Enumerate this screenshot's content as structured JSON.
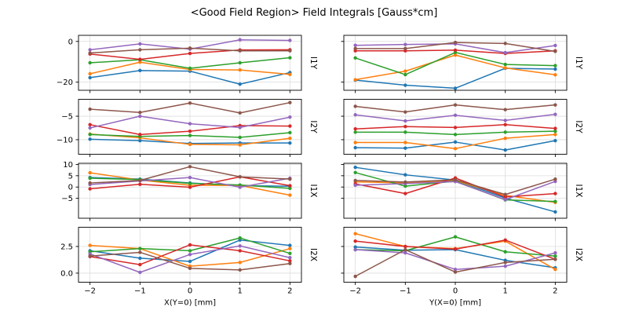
{
  "chart_data": {
    "type": "line",
    "title": "<Good Field Region> Field Integrals [Gauss*cm]",
    "grid": true,
    "legend": "none",
    "x": [
      -2,
      -1,
      0,
      1,
      2
    ],
    "xtick_labels": [
      "−2",
      "−1",
      "0",
      "1",
      "2"
    ],
    "xlim": [
      -2.23,
      2.23
    ],
    "columns": [
      {
        "xlabel": "X(Y=0) [mm]"
      },
      {
        "xlabel": "Y(X=0) [mm]"
      }
    ],
    "rows": [
      {
        "label": "I1Y",
        "ylim": [
          -24.0,
          3.0
        ],
        "yticks": [
          0,
          -20
        ],
        "ytick_labels": [
          "0",
          "−20"
        ]
      },
      {
        "label": "I2Y",
        "ylim": [
          -13.1,
          -1.4
        ],
        "yticks": [
          -5,
          -10
        ],
        "ytick_labels": [
          "−5",
          "−10"
        ]
      },
      {
        "label": "I1X",
        "ylim": [
          -13.8,
          10.5
        ],
        "yticks": [
          10,
          5,
          0,
          -5
        ],
        "ytick_labels": [
          "10",
          "5",
          "0",
          "−5"
        ]
      },
      {
        "label": "I2X",
        "ylim": [
          -0.85,
          4.3
        ],
        "yticks": [
          2.5,
          0
        ],
        "ytick_labels": [
          "2.5",
          "0.0"
        ]
      }
    ],
    "subplots": [
      {
        "row": 0,
        "col": 0,
        "series": [
          {
            "name": "blue",
            "color": "#1f77b4",
            "values": [
              -17.8,
              -14.3,
              -14.6,
              -21.0,
              -15.3
            ]
          },
          {
            "name": "orange",
            "color": "#ff7f0e",
            "values": [
              -15.9,
              -10.2,
              -13.8,
              -14.0,
              -16.2
            ]
          },
          {
            "name": "green",
            "color": "#2ca02c",
            "values": [
              -10.5,
              -9.0,
              -13.2,
              -10.5,
              -8.0
            ]
          },
          {
            "name": "red",
            "color": "#d62728",
            "values": [
              -6.2,
              -8.8,
              -5.9,
              -4.2,
              -4.1
            ]
          },
          {
            "name": "purple",
            "color": "#9467bd",
            "values": [
              -4.1,
              -1.2,
              -3.8,
              0.8,
              0.5
            ]
          },
          {
            "name": "brown",
            "color": "#8c564b",
            "values": [
              -5.7,
              -4.1,
              -3.3,
              -4.6,
              -4.6
            ]
          }
        ]
      },
      {
        "row": 0,
        "col": 1,
        "series": [
          {
            "name": "blue",
            "color": "#1f77b4",
            "values": [
              -19.0,
              -21.5,
              -23.0,
              -13.2,
              -13.6
            ]
          },
          {
            "name": "orange",
            "color": "#ff7f0e",
            "values": [
              -18.8,
              -14.6,
              -6.7,
              -13.0,
              -16.4
            ]
          },
          {
            "name": "green",
            "color": "#2ca02c",
            "values": [
              -8.1,
              -16.3,
              -5.4,
              -11.3,
              -11.9
            ]
          },
          {
            "name": "red",
            "color": "#d62728",
            "values": [
              -4.6,
              -4.6,
              -4.3,
              -5.9,
              -4.6
            ]
          },
          {
            "name": "purple",
            "color": "#9467bd",
            "values": [
              -1.9,
              -1.5,
              -1.2,
              -5.5,
              -2.0
            ]
          },
          {
            "name": "brown",
            "color": "#8c564b",
            "values": [
              -3.5,
              -3.5,
              -0.5,
              -1.0,
              -4.9
            ]
          }
        ]
      },
      {
        "row": 1,
        "col": 0,
        "series": [
          {
            "name": "blue",
            "color": "#1f77b4",
            "values": [
              -9.9,
              -10.2,
              -10.8,
              -10.7,
              -10.7
            ]
          },
          {
            "name": "orange",
            "color": "#ff7f0e",
            "values": [
              -8.8,
              -9.6,
              -11.0,
              -11.1,
              -9.7
            ]
          },
          {
            "name": "green",
            "color": "#2ca02c",
            "values": [
              -8.9,
              -9.3,
              -9.1,
              -9.5,
              -8.5
            ]
          },
          {
            "name": "red",
            "color": "#d62728",
            "values": [
              -6.8,
              -8.9,
              -8.2,
              -7.0,
              -7.1
            ]
          },
          {
            "name": "purple",
            "color": "#9467bd",
            "values": [
              -7.5,
              -5.0,
              -6.6,
              -7.4,
              -5.2
            ]
          },
          {
            "name": "brown",
            "color": "#8c564b",
            "values": [
              -3.5,
              -4.2,
              -2.2,
              -4.3,
              -2.1
            ]
          }
        ]
      },
      {
        "row": 1,
        "col": 1,
        "series": [
          {
            "name": "blue",
            "color": "#1f77b4",
            "values": [
              -11.7,
              -11.8,
              -10.5,
              -12.2,
              -10.2
            ]
          },
          {
            "name": "orange",
            "color": "#ff7f0e",
            "values": [
              -10.6,
              -10.6,
              -11.9,
              -9.7,
              -8.9
            ]
          },
          {
            "name": "green",
            "color": "#2ca02c",
            "values": [
              -8.4,
              -8.4,
              -8.9,
              -8.4,
              -8.2
            ]
          },
          {
            "name": "red",
            "color": "#d62728",
            "values": [
              -7.7,
              -7.2,
              -7.4,
              -6.8,
              -7.6
            ]
          },
          {
            "name": "purple",
            "color": "#9467bd",
            "values": [
              -4.7,
              -6.0,
              -4.8,
              -5.9,
              -4.6
            ]
          },
          {
            "name": "brown",
            "color": "#8c564b",
            "values": [
              -2.9,
              -4.1,
              -2.6,
              -3.6,
              -2.6
            ]
          }
        ]
      },
      {
        "row": 2,
        "col": 0,
        "series": [
          {
            "name": "blue",
            "color": "#1f77b4",
            "values": [
              4.2,
              3.5,
              1.8,
              0.6,
              0.35
            ]
          },
          {
            "name": "orange",
            "color": "#ff7f0e",
            "values": [
              6.3,
              3.1,
              0.8,
              0.7,
              -3.6
            ]
          },
          {
            "name": "green",
            "color": "#2ca02c",
            "values": [
              3.9,
              3.3,
              1.6,
              0.9,
              -0.6
            ]
          },
          {
            "name": "red",
            "color": "#d62728",
            "values": [
              -0.8,
              1.2,
              -0.1,
              4.5,
              0.6
            ]
          },
          {
            "name": "purple",
            "color": "#9467bd",
            "values": [
              1.1,
              2.7,
              4.2,
              -0.1,
              3.9
            ]
          },
          {
            "name": "brown",
            "color": "#8c564b",
            "values": [
              1.8,
              2.9,
              9.0,
              4.5,
              3.5
            ]
          }
        ]
      },
      {
        "row": 2,
        "col": 1,
        "series": [
          {
            "name": "blue",
            "color": "#1f77b4",
            "values": [
              8.7,
              5.4,
              3.1,
              -4.9,
              -11.0
            ]
          },
          {
            "name": "orange",
            "color": "#ff7f0e",
            "values": [
              2.3,
              1.8,
              2.9,
              -3.7,
              -6.8
            ]
          },
          {
            "name": "green",
            "color": "#2ca02c",
            "values": [
              6.4,
              0.4,
              2.6,
              -5.7,
              -6.4
            ]
          },
          {
            "name": "red",
            "color": "#d62728",
            "values": [
              1.4,
              -2.9,
              4.0,
              -4.4,
              -2.9
            ]
          },
          {
            "name": "purple",
            "color": "#9467bd",
            "values": [
              0.8,
              1.5,
              2.4,
              -5.6,
              2.5
            ]
          },
          {
            "name": "brown",
            "color": "#8c564b",
            "values": [
              2.9,
              2.2,
              3.2,
              -3.3,
              3.5
            ]
          }
        ]
      },
      {
        "row": 3,
        "col": 0,
        "series": [
          {
            "name": "blue",
            "color": "#1f77b4",
            "values": [
              2.1,
              1.4,
              1.1,
              3.1,
              2.6
            ]
          },
          {
            "name": "orange",
            "color": "#ff7f0e",
            "values": [
              2.6,
              2.3,
              0.65,
              1.0,
              2.3
            ]
          },
          {
            "name": "green",
            "color": "#2ca02c",
            "values": [
              2.0,
              2.3,
              2.1,
              3.3,
              1.85
            ]
          },
          {
            "name": "red",
            "color": "#d62728",
            "values": [
              1.55,
              0.8,
              2.65,
              2.1,
              1.15
            ]
          },
          {
            "name": "purple",
            "color": "#9467bd",
            "values": [
              1.8,
              0.07,
              1.75,
              2.55,
              1.45
            ]
          },
          {
            "name": "brown",
            "color": "#8c564b",
            "values": [
              1.6,
              1.95,
              0.45,
              0.3,
              0.9
            ]
          }
        ]
      },
      {
        "row": 3,
        "col": 1,
        "series": [
          {
            "name": "blue",
            "color": "#1f77b4",
            "values": [
              2.45,
              2.15,
              2.2,
              1.2,
              0.5
            ]
          },
          {
            "name": "orange",
            "color": "#ff7f0e",
            "values": [
              3.7,
              2.5,
              2.3,
              3.0,
              0.35
            ]
          },
          {
            "name": "green",
            "color": "#2ca02c",
            "values": [
              2.2,
              2.1,
              3.4,
              2.0,
              1.6
            ]
          },
          {
            "name": "red",
            "color": "#d62728",
            "values": [
              3.0,
              2.5,
              2.25,
              3.1,
              1.3
            ]
          },
          {
            "name": "purple",
            "color": "#9467bd",
            "values": [
              2.2,
              1.9,
              0.35,
              0.65,
              1.9
            ]
          },
          {
            "name": "brown",
            "color": "#8c564b",
            "values": [
              -0.3,
              2.2,
              0.1,
              1.0,
              1.3
            ]
          }
        ]
      }
    ],
    "style": {
      "grid_color": "#dcdcdc",
      "spine_color": "#000000",
      "text_color": "#000000",
      "background": "#ffffff"
    }
  }
}
